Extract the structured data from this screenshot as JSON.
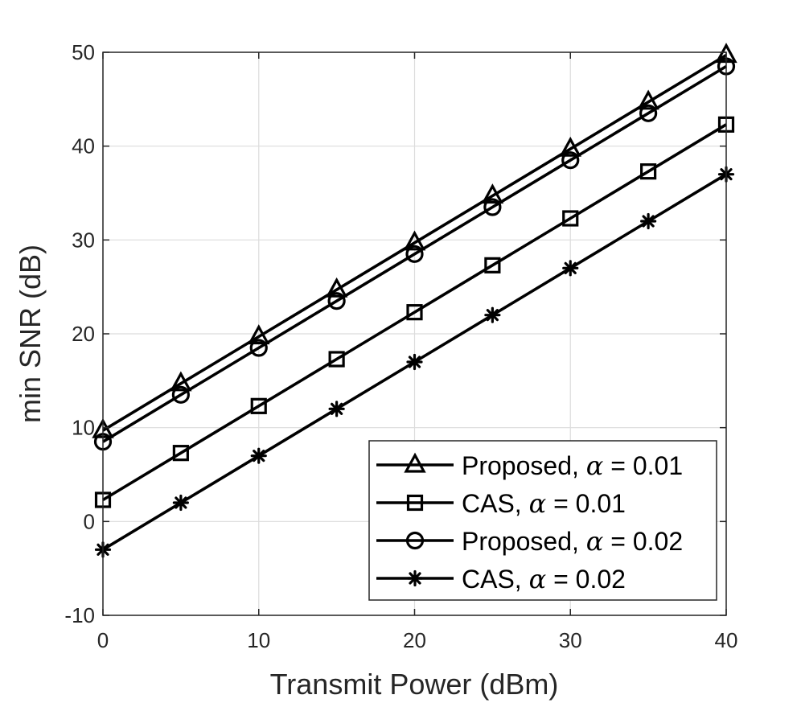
{
  "chart_data": {
    "type": "line",
    "title": "",
    "xlabel": "Transmit Power (dBm)",
    "ylabel": "min SNR (dB)",
    "xlim": [
      0,
      40
    ],
    "ylim": [
      -10,
      50
    ],
    "xticks": [
      0,
      10,
      20,
      30,
      40
    ],
    "yticks": [
      -10,
      0,
      10,
      20,
      30,
      40,
      50
    ],
    "grid": true,
    "legend_position": "bottom-right",
    "line_color": "#000000",
    "x": [
      0,
      5,
      10,
      15,
      20,
      25,
      30,
      35,
      40
    ],
    "series": [
      {
        "name": "Proposed, α = 0.01",
        "name_prefix": "Proposed,",
        "alpha_symbol": "α",
        "alpha_value": "= 0.01",
        "marker": "triangle",
        "values": [
          9.7,
          14.7,
          19.7,
          24.7,
          29.7,
          34.7,
          39.7,
          44.7,
          49.7
        ]
      },
      {
        "name": "CAS, α = 0.01",
        "name_prefix": "CAS,",
        "alpha_symbol": "α",
        "alpha_value": "= 0.01",
        "marker": "square",
        "values": [
          2.3,
          7.3,
          12.3,
          17.3,
          22.3,
          27.3,
          32.3,
          37.3,
          42.3
        ]
      },
      {
        "name": "Proposed, α = 0.02",
        "name_prefix": "Proposed,",
        "alpha_symbol": "α",
        "alpha_value": "= 0.02",
        "marker": "circle",
        "values": [
          8.5,
          13.5,
          18.5,
          23.5,
          28.5,
          33.5,
          38.5,
          43.5,
          48.5
        ]
      },
      {
        "name": "CAS, α = 0.02",
        "name_prefix": "CAS,",
        "alpha_symbol": "α",
        "alpha_value": "= 0.02",
        "marker": "asterisk",
        "values": [
          -3.0,
          2.0,
          7.0,
          12.0,
          17.0,
          22.0,
          27.0,
          32.0,
          37.0
        ]
      }
    ]
  }
}
